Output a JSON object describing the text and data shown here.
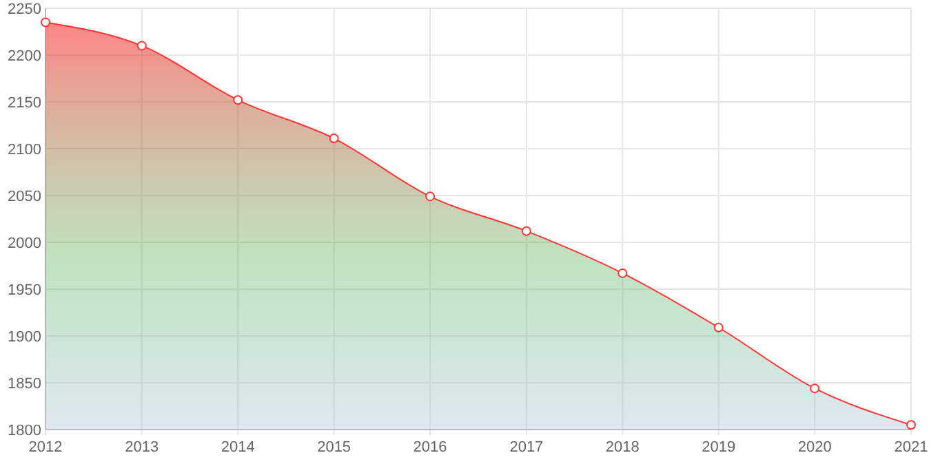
{
  "chart_data": {
    "type": "area",
    "x": [
      "2012",
      "2013",
      "2014",
      "2015",
      "2016",
      "2017",
      "2018",
      "2019",
      "2020",
      "2021"
    ],
    "series": [
      {
        "color": "#ff3333",
        "values": [
          2235,
          2210,
          2152,
          2111,
          2049,
          2012,
          1967,
          1909,
          1844,
          1805
        ]
      }
    ],
    "xlim": [
      "2012",
      "2021"
    ],
    "xticks": [
      {
        "value": "2012",
        "label": "2012"
      },
      {
        "value": "2013",
        "label": "2013"
      },
      {
        "value": "2014",
        "label": "2014"
      },
      {
        "value": "2015",
        "label": "2015"
      },
      {
        "value": "2016",
        "label": "2016"
      },
      {
        "value": "2017",
        "label": "2017"
      },
      {
        "value": "2018",
        "label": "2018"
      },
      {
        "value": "2019",
        "label": "2019"
      },
      {
        "value": "2020",
        "label": "2020"
      },
      {
        "value": "2021",
        "label": "2021"
      }
    ],
    "ylim": [
      1800,
      2250
    ],
    "yticks": [
      1800,
      1850,
      1900,
      1950,
      2000,
      2050,
      2100,
      2150,
      2200,
      2250
    ],
    "grid": true,
    "marker": "circle"
  }
}
